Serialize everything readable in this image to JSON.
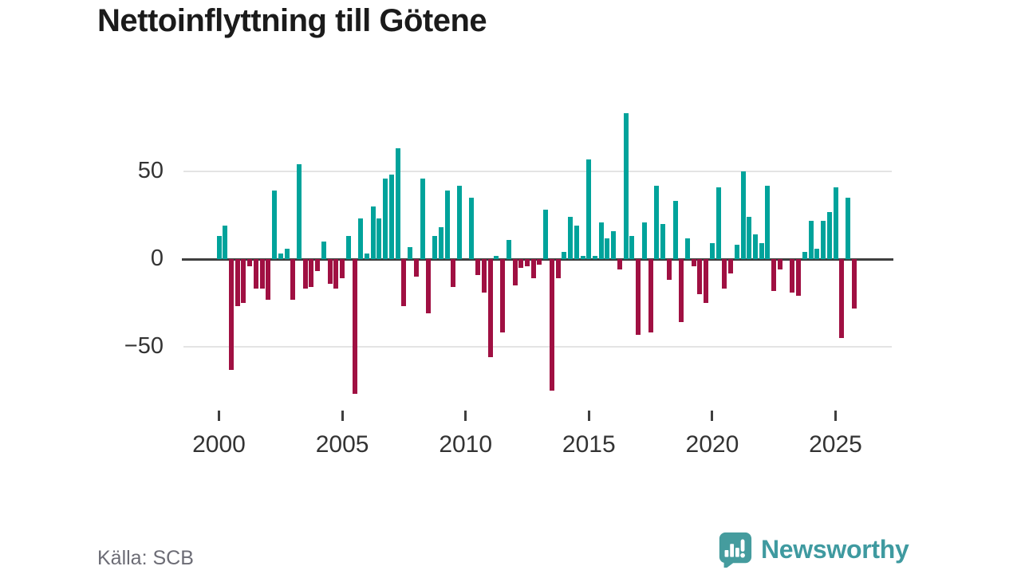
{
  "title": "Nettoinflyttning till Götene",
  "source": "Källa: SCB",
  "logo": {
    "brand": "Newsworthy"
  },
  "colors": {
    "positive": "#00a39b",
    "negative": "#a01042",
    "grid": "#e4e4e4",
    "zero_axis": "#3f3f3f",
    "axis_text": "#333333",
    "title_text": "#1b1b1b",
    "muted_text": "#6c6c75",
    "brand": "#3f9aa0"
  },
  "chart_data": {
    "type": "bar",
    "title": "Nettoinflyttning till Götene",
    "frequency": "quarterly",
    "x_start": "2000-Q1",
    "x_end": "2025-Q4",
    "values": [
      13,
      19,
      -63,
      -27,
      -25,
      -4,
      -17,
      -17,
      -23,
      39,
      3,
      6,
      -23,
      54,
      -17,
      -16,
      -7,
      10,
      -14,
      -17,
      -11,
      13,
      -77,
      23,
      3,
      30,
      23,
      46,
      48,
      63,
      -27,
      7,
      -10,
      46,
      -31,
      13,
      18,
      39,
      -16,
      42,
      0,
      35,
      -9,
      -19,
      -56,
      2,
      -42,
      11,
      -15,
      -5,
      -4,
      -11,
      -3,
      28,
      -75,
      -11,
      4,
      24,
      19,
      2,
      57,
      2,
      21,
      12,
      16,
      -6,
      83,
      13,
      -43,
      21,
      -42,
      42,
      20,
      -12,
      33,
      -36,
      12,
      -4,
      -20,
      -25,
      9,
      41,
      -17,
      -8,
      8,
      50,
      24,
      14,
      9,
      42,
      -18,
      -6,
      0,
      -19,
      -21,
      4,
      22,
      6,
      22,
      27,
      41,
      -45,
      35,
      -28
    ],
    "x_tick_labels": [
      "2000",
      "2005",
      "2010",
      "2015",
      "2020",
      "2025"
    ],
    "y_ticks": [
      {
        "label": "50",
        "value": 50
      },
      {
        "label": "0",
        "value": 0
      },
      {
        "label": "−50",
        "value": -50
      }
    ],
    "ylim": [
      -85,
      90
    ],
    "grid": "horizontal",
    "legend": "none",
    "positive_color": "#00a39b",
    "negative_color": "#a01042"
  }
}
